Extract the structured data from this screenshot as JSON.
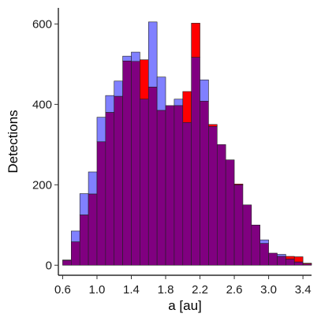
{
  "chart_data": {
    "type": "bar",
    "subtype": "overlaid-histogram",
    "xlabel": "a [au]",
    "ylabel": "Detections",
    "xlim": [
      0.55,
      3.5
    ],
    "ylim": [
      -25,
      640
    ],
    "bin_width": 0.1,
    "x_ticks": [
      {
        "value": 0.6,
        "label": "0.6"
      },
      {
        "value": 1.0,
        "label": "1.0"
      },
      {
        "value": 1.4,
        "label": "1.4"
      },
      {
        "value": 1.8,
        "label": "1.8"
      },
      {
        "value": 2.2,
        "label": "2.2"
      },
      {
        "value": 2.6,
        "label": "2.6"
      },
      {
        "value": 3.0,
        "label": "3.0"
      },
      {
        "value": 3.4,
        "label": "3.4"
      }
    ],
    "y_ticks": [
      {
        "value": 0,
        "label": "0"
      },
      {
        "value": 200,
        "label": "200"
      },
      {
        "value": 400,
        "label": "400"
      },
      {
        "value": 600,
        "label": "600"
      }
    ],
    "bin_starts": [
      0.6,
      0.7,
      0.8,
      0.9,
      1.0,
      1.1,
      1.2,
      1.3,
      1.4,
      1.5,
      1.6,
      1.7,
      1.8,
      1.9,
      2.0,
      2.1,
      2.2,
      2.3,
      2.4,
      2.5,
      2.6,
      2.7,
      2.8,
      2.9,
      3.0,
      3.1,
      3.2,
      3.3,
      3.4
    ],
    "series": [
      {
        "color": "#ff0000",
        "values": [
          12,
          58,
          125,
          177,
          307,
          380,
          420,
          508,
          507,
          511,
          443,
          385,
          397,
          397,
          432,
          602,
          408,
          350,
          300,
          262,
          202,
          150,
          100,
          54,
          30,
          22,
          22,
          21,
          5
        ]
      },
      {
        "color": "#8080ff",
        "values": [
          13,
          85,
          178,
          232,
          368,
          422,
          458,
          520,
          530,
          413,
          605,
          468,
          397,
          413,
          355,
          517,
          461,
          345,
          300,
          262,
          200,
          150,
          100,
          63,
          30,
          27,
          15,
          8,
          3
        ]
      }
    ],
    "overlap_color": "#800080",
    "grid": false,
    "legend": "none"
  }
}
